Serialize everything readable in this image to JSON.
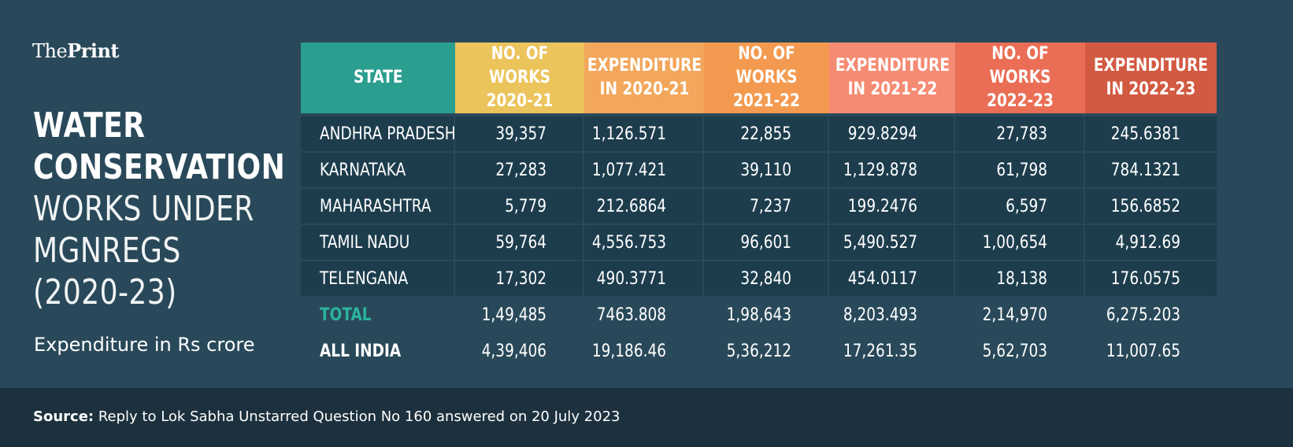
{
  "brand": {
    "logo_light": "The",
    "logo_bold": "Print"
  },
  "title": {
    "line1": "WATER",
    "line2": "CONSERVATION",
    "line3": "WORKS UNDER",
    "line4": "MGNREGS",
    "line5": "(2020-23)"
  },
  "subtitle": "Expenditure in Rs crore",
  "source": {
    "label": "Source:",
    "text": "Reply to Lok Sabha Unstarred Question No 160 answered on 20 July 2023"
  },
  "colors": {
    "background": "#29495a",
    "row_fill": "#1d3d4d",
    "footer": "#1c313d",
    "total_label": "#2bb39c",
    "header_state": "#2a9e8f",
    "header_works_2020": "#ecc45c",
    "header_exp_2020": "#f2a75c",
    "header_works_2021": "#f39a50",
    "header_exp_2021": "#f58b73",
    "header_works_2022": "#ea6e55",
    "header_exp_2022": "#d25a42"
  },
  "chart_data": {
    "type": "table",
    "columns": [
      "STATE",
      "NO. OF WORKS\n2020-21",
      "EXPENDITURE\nIN 2020-21",
      "NO. OF WORKS\n2021-22",
      "EXPENDITURE\nIN 2021-22",
      "NO. OF WORKS\n2022-23",
      "EXPENDITURE\nIN 2022-23"
    ],
    "rows": [
      [
        "ANDHRA PRADESH",
        "39,357",
        "1,126.571",
        "22,855",
        "929.8294",
        "27,783",
        "245.6381"
      ],
      [
        "KARNATAKA",
        "27,283",
        "1,077.421",
        "39,110",
        "1,129.878",
        "61,798",
        "784.1321"
      ],
      [
        "MAHARASHTRA",
        "5,779",
        "212.6864",
        "7,237",
        "199.2476",
        "6,597",
        "156.6852"
      ],
      [
        "TAMIL NADU",
        "59,764",
        "4,556.753",
        "96,601",
        "5,490.527",
        "1,00,654",
        "4,912.69"
      ],
      [
        "TELENGANA",
        "17,302",
        "490.3771",
        "32,840",
        "454.0117",
        "18,138",
        "176.0575"
      ]
    ],
    "summary_rows": [
      [
        "TOTAL",
        "1,49,485",
        "7463.808",
        "1,98,643",
        "8,203.493",
        "2,14,970",
        "6,275.203"
      ],
      [
        "ALL INDIA",
        "4,39,406",
        "19,186.46",
        "5,36,212",
        "17,261.35",
        "5,62,703",
        "11,007.65"
      ]
    ]
  }
}
